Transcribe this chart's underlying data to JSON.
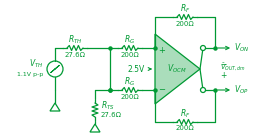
{
  "bg_color": "#ffffff",
  "cc": "#009933",
  "amp_fill": "#aaddbb",
  "figsize": [
    2.77,
    1.39
  ],
  "dpi": 100,
  "RTH_label": "R_{TH}",
  "RTH_val": "27.6Ω",
  "VTH_label": "V_{TH}",
  "VTH_val": "1.1V p-p",
  "RTS_label": "R_{TS}",
  "RTS_val": "27.6Ω",
  "RG_label": "R_G",
  "RG_val": "200Ω",
  "RF_label": "R_F",
  "RF_val": "200Ω",
  "VOCM_label": "V_{OCM}",
  "VOCM_in": "2.5V",
  "VON_label": "V_{ON}",
  "VOP_label": "V_{OP}",
  "VOUT_label": "V_{OUT, dm}"
}
